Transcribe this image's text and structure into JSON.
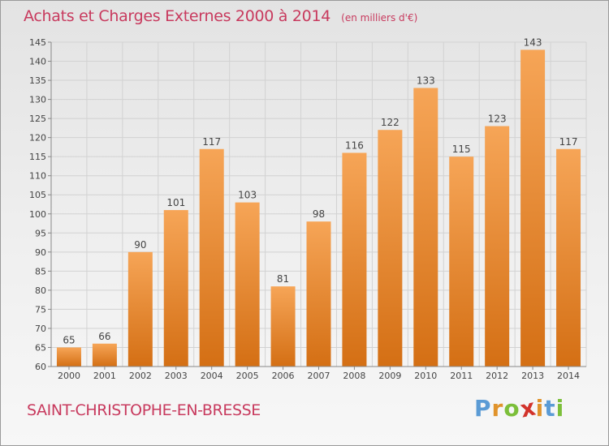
{
  "header": {
    "title": "Achats et Charges Externes 2000 à 2014",
    "subtitle": "(en milliers d'€)"
  },
  "footer": {
    "commune": "SAINT-CHRISTOPHE-EN-BRESSE",
    "logo": [
      "P",
      "r",
      "o",
      "x",
      "i",
      "t",
      "i"
    ]
  },
  "colors": {
    "bar_top": "#f6a557",
    "bar_bottom": "#d46f14",
    "title": "#c83a5e",
    "logo": [
      "#5b9bd5",
      "#e0932b",
      "#7cbf3a",
      "#d2332b",
      "#e0932b",
      "#5b9bd5",
      "#7cbf3a"
    ]
  },
  "chart_data": {
    "type": "bar",
    "categories": [
      "2000",
      "2001",
      "2002",
      "2003",
      "2004",
      "2005",
      "2006",
      "2007",
      "2008",
      "2009",
      "2010",
      "2011",
      "2012",
      "2013",
      "2014"
    ],
    "values": [
      65,
      66,
      90,
      101,
      117,
      103,
      81,
      98,
      116,
      122,
      133,
      115,
      123,
      143,
      117
    ],
    "data_labels": [
      "65",
      "66",
      "90",
      "101",
      "117",
      "103",
      "81",
      "98",
      "116",
      "122",
      "133",
      "115",
      "123",
      "143",
      "117"
    ],
    "ylim": [
      60,
      145
    ],
    "yticks": [
      60,
      65,
      70,
      75,
      80,
      85,
      90,
      95,
      100,
      105,
      110,
      115,
      120,
      125,
      130,
      135,
      140,
      145
    ],
    "grid": true,
    "xlabel": "",
    "ylabel": ""
  }
}
